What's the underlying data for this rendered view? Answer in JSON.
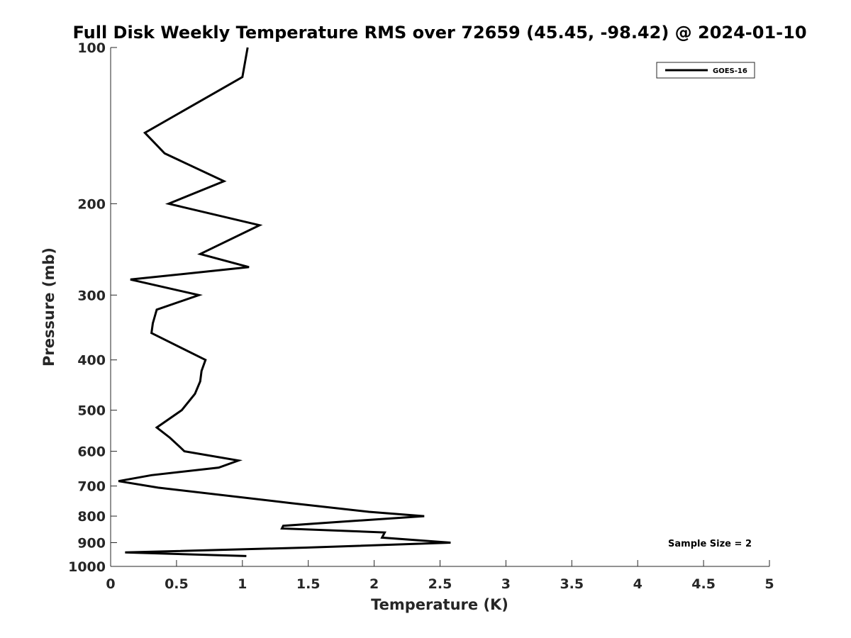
{
  "chart_data": {
    "type": "line",
    "title": "Full Disk Weekly Temperature RMS over 72659 (45.45, -98.42) @ 2024-01-10",
    "xlabel": "Temperature (K)",
    "ylabel": "Pressure (mb)",
    "xlim": [
      0,
      5
    ],
    "ylim": [
      100,
      1000
    ],
    "y_scale": "log",
    "y_reversed": true,
    "grid": false,
    "legend_position": "top-right",
    "x_ticks": [
      0,
      0.5,
      1,
      1.5,
      2,
      2.5,
      3,
      3.5,
      4,
      4.5,
      5
    ],
    "x_tick_labels": [
      "0",
      "0.5",
      "1",
      "1.5",
      "2",
      "2.5",
      "3",
      "3.5",
      "4",
      "4.5",
      "5"
    ],
    "y_ticks": [
      100,
      200,
      300,
      400,
      500,
      600,
      700,
      800,
      900,
      1000
    ],
    "y_tick_labels": [
      "100",
      "200",
      "300",
      "400",
      "500",
      "600",
      "700",
      "800",
      "900",
      "1000"
    ],
    "annotation": "Sample Size = 2",
    "series": [
      {
        "name": "GOES-16",
        "color": "#000000",
        "x": [
          1.04,
          1.0,
          0.26,
          0.41,
          0.86,
          0.44,
          1.13,
          0.68,
          1.05,
          0.15,
          0.67,
          0.35,
          0.32,
          0.31,
          0.72,
          0.69,
          0.68,
          0.64,
          0.54,
          0.35,
          0.45,
          0.53,
          0.56,
          0.97,
          0.82,
          0.31,
          0.06,
          0.36,
          1.37,
          1.96,
          2.38,
          1.76,
          1.31,
          1.3,
          2.08,
          2.06,
          2.58,
          1.48,
          0.11,
          1.03
        ],
        "y": [
          100,
          114,
          146,
          160,
          181,
          200,
          220,
          250,
          265,
          280,
          300,
          320,
          340,
          355,
          400,
          420,
          440,
          465,
          500,
          540,
          565,
          590,
          600,
          625,
          645,
          667,
          685,
          705,
          755,
          785,
          800,
          820,
          835,
          845,
          860,
          880,
          900,
          920,
          940,
          955
        ]
      }
    ]
  }
}
